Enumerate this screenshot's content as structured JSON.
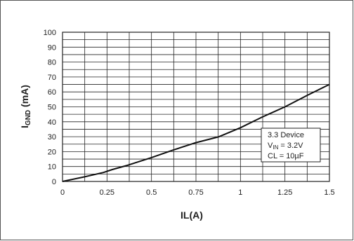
{
  "chart_data": {
    "type": "line",
    "xlabel": "IL(A)",
    "ylabel": "I",
    "ylabel_subscript": "GND",
    "ylabel_unit": " (mA)",
    "xlim": [
      0,
      1.5
    ],
    "ylim": [
      0,
      100
    ],
    "x_ticks": [
      "0",
      "0.25",
      "0.5",
      "0.75",
      "1",
      "1.25",
      "1.5"
    ],
    "x_tick_values": [
      0,
      0.25,
      0.5,
      0.75,
      1,
      1.25,
      1.5
    ],
    "y_ticks": [
      "0",
      "10",
      "20",
      "30",
      "40",
      "50",
      "60",
      "70",
      "80",
      "90",
      "100"
    ],
    "y_tick_values": [
      0,
      10,
      20,
      30,
      40,
      50,
      60,
      70,
      80,
      90,
      100
    ],
    "grid": true,
    "x_minor_divisions": 2,
    "y_minor_divisions": 2,
    "series": [
      {
        "x": [
          0,
          0.12,
          0.23,
          0.28,
          0.37,
          0.5,
          0.62,
          0.75,
          0.88,
          1.0,
          1.12,
          1.25,
          1.38,
          1.5
        ],
        "y": [
          0,
          3,
          6,
          8,
          11,
          16,
          21,
          26,
          30,
          36,
          43,
          50,
          58,
          65
        ]
      }
    ],
    "annotation": {
      "line1": "3.3 Device",
      "line2_main": "V",
      "line2_sub": "IN",
      "line2_rest": " = 3.2V",
      "line3": "CL = 10µF"
    }
  },
  "colors": {
    "grid": "#222222",
    "line": "#111111",
    "text": "#222222"
  }
}
